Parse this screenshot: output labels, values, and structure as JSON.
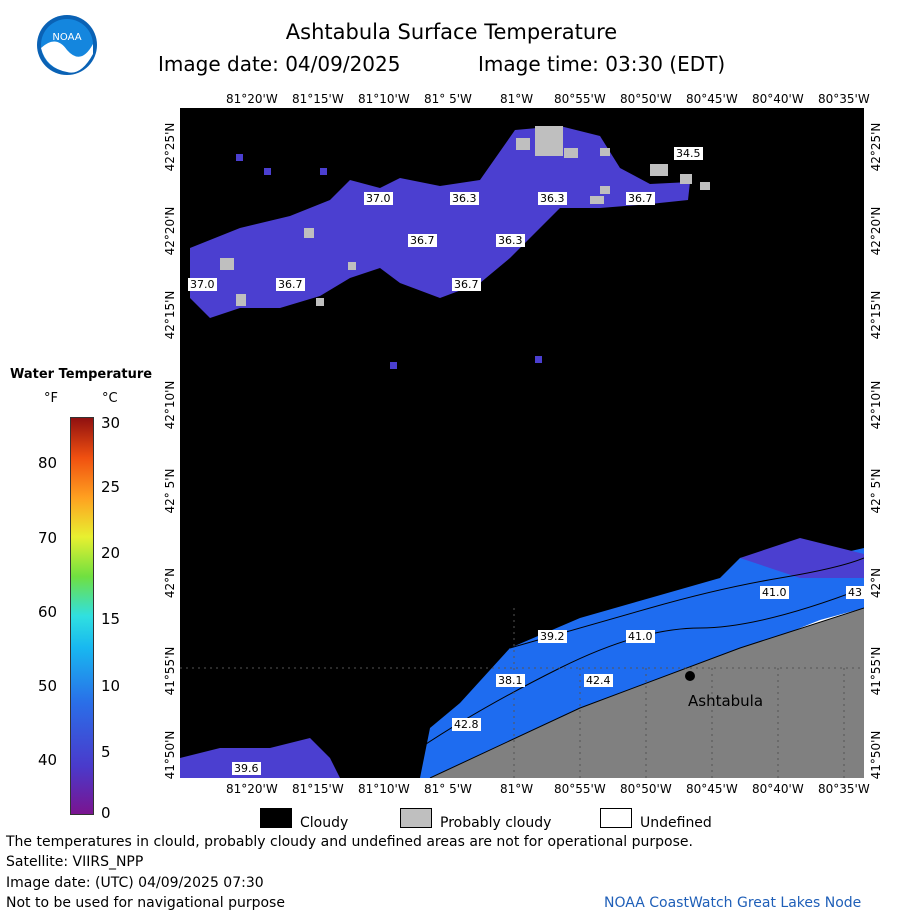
{
  "header": {
    "title": "Ashtabula Surface Temperature",
    "image_date": "Image date: 04/09/2025",
    "image_time": "Image time: 03:30 (EDT)",
    "logo_text": "NOAA"
  },
  "map": {
    "lon_ticks": [
      "81°20'W",
      "81°15'W",
      "81°10'W",
      "81° 5'W",
      "81°W",
      "80°55'W",
      "80°50'W",
      "80°45'W",
      "80°40'W",
      "80°35'W"
    ],
    "lat_ticks": [
      "42°25'N",
      "42°20'N",
      "42°15'N",
      "42°10'N",
      "42° 5'N",
      "42°N",
      "41°55'N",
      "41°50'N"
    ],
    "temp_labels": [
      "34.5",
      "37.0",
      "36.3",
      "36.3",
      "36.7",
      "36.7",
      "36.3",
      "37.0",
      "36.7",
      "36.7",
      "41.0",
      "43",
      "39.2",
      "41.0",
      "38.1",
      "42.4",
      "42.8",
      "39.6"
    ],
    "place": "Ashtabula",
    "colors": {
      "water_cold": "#4b3fd0",
      "water_warm": "#1e6cf0",
      "land": "#808080",
      "probably_cloudy": "#c0c0c0",
      "cloudy": "#000000"
    }
  },
  "legend": {
    "title": "Water Temperature",
    "unit_f": "°F",
    "unit_c": "°C",
    "f_ticks": [
      "80",
      "70",
      "60",
      "50",
      "40"
    ],
    "c_ticks": [
      "30",
      "25",
      "20",
      "15",
      "10",
      "5",
      "0"
    ],
    "cloudy": "Cloudy",
    "probably_cloudy": "Probably cloudy",
    "undefined": "Undefined"
  },
  "footer": {
    "disclaimer": "The temperatures in clould, probably cloudy and undefined areas are not for operational purpose.",
    "satellite": "Satellite: VIIRS_NPP",
    "image_date_utc": "Image date: (UTC) 04/09/2025  07:30",
    "nav": "Not to be used for navigational purpose",
    "credit": "NOAA CoastWatch Great Lakes Node"
  }
}
